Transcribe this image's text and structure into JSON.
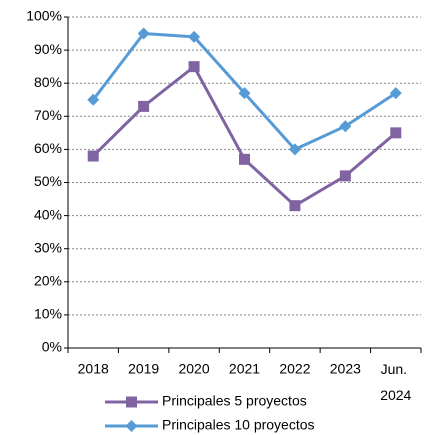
{
  "chart_data": {
    "type": "line",
    "categories": [
      "2018",
      "2019",
      "2020",
      "2021",
      "2022",
      "2023",
      "Jun. 2024"
    ],
    "series": [
      {
        "name": "Principales 5 proyectos",
        "color": "#8064a2",
        "marker": "square",
        "values": [
          58,
          73,
          85,
          57,
          43,
          52,
          65
        ]
      },
      {
        "name": "Principales 10 proyectos",
        "color": "#569ad6",
        "marker": "diamond",
        "values": [
          75,
          95,
          94,
          77,
          60,
          67,
          77
        ]
      }
    ],
    "ylim": [
      0,
      100
    ],
    "yticks": [
      {
        "value": 0,
        "label": "0%"
      },
      {
        "value": 10,
        "label": "10%"
      },
      {
        "value": 20,
        "label": "20%"
      },
      {
        "value": 30,
        "label": "30%"
      },
      {
        "value": 40,
        "label": "40%"
      },
      {
        "value": 50,
        "label": "50%"
      },
      {
        "value": 60,
        "label": "60%"
      },
      {
        "value": 70,
        "label": "70%"
      },
      {
        "value": 80,
        "label": "80%"
      },
      {
        "value": 90,
        "label": "90%"
      },
      {
        "value": 100,
        "label": "100%"
      }
    ],
    "grid": true,
    "legend": "bottom"
  }
}
